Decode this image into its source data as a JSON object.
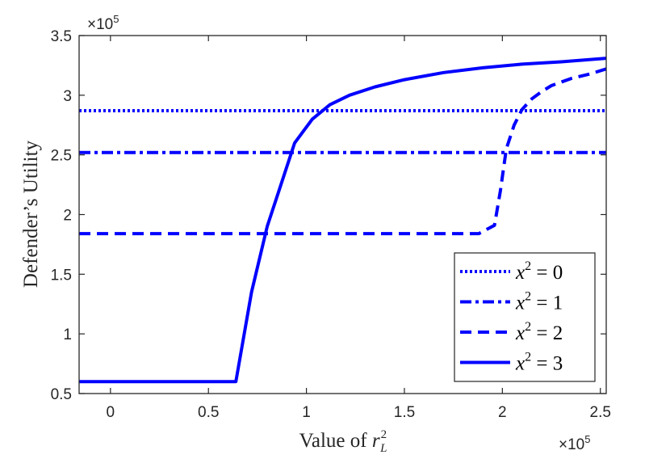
{
  "chart_data": {
    "type": "line",
    "xlabel": "Value of r_L^2",
    "xlabel_main": "Value of ",
    "xlabel_var": "r",
    "xlabel_sub": "L",
    "xlabel_sup": "2",
    "ylabel": "Defender’s Utility",
    "x_exponent_label": "×10",
    "x_exponent": "5",
    "y_exponent_label": "×10",
    "y_exponent": "5",
    "xlim": [
      -0.16,
      2.53
    ],
    "ylim": [
      0.5,
      3.5
    ],
    "x_ticks": [
      0,
      0.5,
      1,
      1.5,
      2,
      2.5
    ],
    "x_tick_labels": [
      "0",
      "0.5",
      "1",
      "1.5",
      "2",
      "2.5"
    ],
    "y_ticks": [
      0.5,
      1,
      1.5,
      2,
      2.5,
      3,
      3.5
    ],
    "y_tick_labels": [
      "0.5",
      "1",
      "1.5",
      "2",
      "2.5",
      "3",
      "3.5"
    ],
    "grid": false,
    "legend_position": "bottom-right",
    "color": "#0000ff",
    "series": [
      {
        "name": "x^2 = 0",
        "name_var": "x",
        "name_sup": "2",
        "name_rest": " = 0",
        "style": "dotted",
        "x": [
          -0.16,
          2.53
        ],
        "y": [
          2.87,
          2.87
        ]
      },
      {
        "name": "x^2 = 1",
        "name_var": "x",
        "name_sup": "2",
        "name_rest": " = 1",
        "style": "dashdot",
        "x": [
          -0.16,
          2.53
        ],
        "y": [
          2.52,
          2.52
        ]
      },
      {
        "name": "x^2 = 2",
        "name_var": "x",
        "name_sup": "2",
        "name_rest": " = 2",
        "style": "dashed",
        "x": [
          -0.16,
          1.88,
          1.96,
          1.99,
          2.02,
          2.06,
          2.1,
          2.15,
          2.2,
          2.25,
          2.35,
          2.45,
          2.53
        ],
        "y": [
          1.84,
          1.84,
          1.91,
          2.2,
          2.55,
          2.75,
          2.88,
          2.97,
          3.03,
          3.08,
          3.14,
          3.18,
          3.22
        ]
      },
      {
        "name": "x^2 = 3",
        "name_var": "x",
        "name_sup": "2",
        "name_rest": " = 3",
        "style": "solid",
        "x": [
          -0.16,
          0.64,
          0.72,
          0.8,
          0.87,
          0.94,
          1.03,
          1.12,
          1.22,
          1.35,
          1.5,
          1.7,
          1.9,
          2.1,
          2.3,
          2.53
        ],
        "y": [
          0.6,
          0.6,
          1.35,
          1.9,
          2.25,
          2.6,
          2.8,
          2.92,
          3.0,
          3.07,
          3.13,
          3.19,
          3.23,
          3.26,
          3.28,
          3.31
        ]
      }
    ]
  }
}
